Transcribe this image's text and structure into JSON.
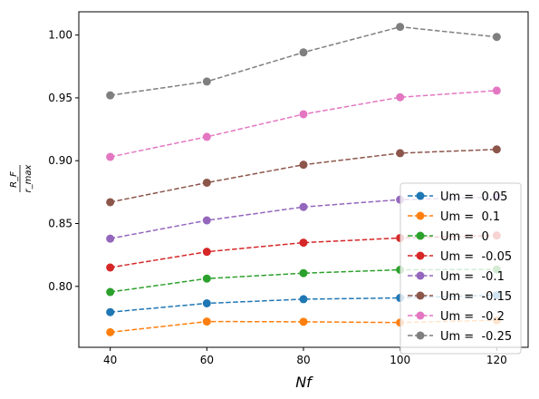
{
  "chart_data": {
    "type": "line",
    "xlabel": "Nf",
    "ylabel_numerator": "R_F",
    "ylabel_denominator": "r_max",
    "x": [
      40,
      60,
      80,
      100,
      120
    ],
    "xticks": [
      "40",
      "60",
      "80",
      "100",
      "120"
    ],
    "yticks": [
      "0.80",
      "0.85",
      "0.90",
      "0.95",
      "1.00"
    ],
    "xlim": [
      33.5,
      126.5
    ],
    "ylim": [
      0.7515,
      1.0185
    ],
    "grid": false,
    "legend_position": "lower-right",
    "line_style": "dashed",
    "marker": "circle",
    "series": [
      {
        "name": "Um =  0.05",
        "color": "#1f77b4",
        "values": [
          0.7795,
          0.7865,
          0.7898,
          0.7908,
          0.793
        ]
      },
      {
        "name": "Um =  0.1",
        "color": "#ff7f0e",
        "values": [
          0.7635,
          0.772,
          0.7718,
          0.7712,
          0.773
        ]
      },
      {
        "name": "Um =  0",
        "color": "#2ca02c",
        "values": [
          0.7955,
          0.8062,
          0.8105,
          0.8132,
          0.8135
        ]
      },
      {
        "name": "Um =  -0.05",
        "color": "#d62728",
        "values": [
          0.815,
          0.8275,
          0.8348,
          0.8385,
          0.8405
        ]
      },
      {
        "name": "Um =  -0.1",
        "color": "#9467bd",
        "values": [
          0.838,
          0.8525,
          0.8632,
          0.869,
          0.871
        ]
      },
      {
        "name": "Um =  -0.15",
        "color": "#8c564b",
        "values": [
          0.867,
          0.8825,
          0.8968,
          0.906,
          0.909
        ]
      },
      {
        "name": "Um =  -0.2",
        "color": "#e377c2",
        "values": [
          0.903,
          0.919,
          0.937,
          0.9505,
          0.9558
        ]
      },
      {
        "name": "Um =  -0.25",
        "color": "#7f7f7f",
        "values": [
          0.952,
          0.963,
          0.9862,
          1.0065,
          0.9985
        ]
      }
    ]
  }
}
